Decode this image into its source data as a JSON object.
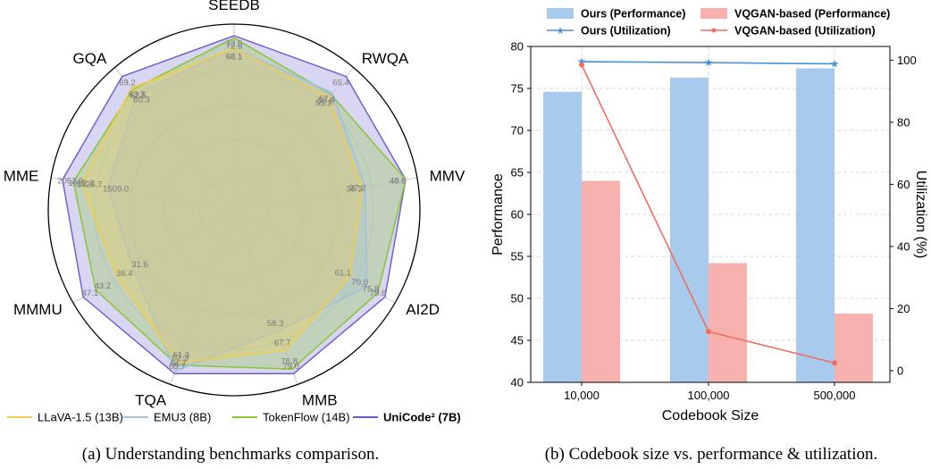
{
  "chart_data": [
    {
      "type": "radar",
      "caption": "(a) Understanding benchmarks comparison.",
      "axes": [
        "SEEDB",
        "RWQA",
        "MMV",
        "AI2D",
        "MMB",
        "TQA",
        "MMMU",
        "MME",
        "GQA"
      ],
      "series": [
        {
          "name": "LLaVA-1.5 (13B)",
          "color": "#f2cd4d",
          "values": [
            68.1,
            55.3,
            36.3,
            61.1,
            67.7,
            61.3,
            36.4,
            1826.7,
            63.3
          ]
        },
        {
          "name": "EMU3 (8B)",
          "color": "#a9bfd6",
          "values": [
            68.1,
            57.4,
            37.2,
            70.0,
            58.3,
            64.7,
            31.6,
            1509.0,
            60.3
          ]
        },
        {
          "name": "TokenFlow (14B)",
          "color": "#8cc63e",
          "values": [
            72.6,
            56.6,
            48.6,
            75.8,
            76.8,
            62.3,
            43.2,
            1922.2,
            62.5
          ]
        },
        {
          "name": "UniCode² (7B)",
          "color": "#6a5acd",
          "fill": "#cbc8ee",
          "values": [
            73.5,
            65.4,
            48.6,
            79.6,
            79.0,
            65.7,
            47.1,
            2052.0,
            69.2
          ]
        }
      ]
    },
    {
      "type": "bar+line",
      "caption": "(b) Codebook size vs. performance & utilization.",
      "categories": [
        "10,000",
        "100,000",
        "500,000"
      ],
      "xlabel": "Codebook Size",
      "ylabel": "Performance",
      "ylabel_right": "Utilization (%)",
      "ylim": [
        40,
        80
      ],
      "yticks": [
        40,
        45,
        50,
        55,
        60,
        65,
        70,
        75,
        80
      ],
      "ylim_right": [
        -3.75,
        104.4
      ],
      "yticks_right": [
        0,
        20,
        40,
        60,
        80,
        100
      ],
      "grid": true,
      "legend_placement": "top",
      "bars": [
        {
          "name": "Ours (Performance)",
          "color": "#a8caed",
          "values": [
            74.6,
            76.3,
            77.4
          ]
        },
        {
          "name": "VQGAN-based (Performance)",
          "color": "#f7b2ad",
          "values": [
            64.0,
            54.2,
            48.2
          ]
        }
      ],
      "lines": [
        {
          "name": "Ours (Utilization)",
          "color": "#4a90d9",
          "marker": "star",
          "values": [
            99.5,
            99.2,
            98.8
          ]
        },
        {
          "name": "VQGAN-based (Utilization)",
          "color": "#ef6f60",
          "marker": "dot",
          "values": [
            98.5,
            12.6,
            2.5
          ]
        }
      ]
    }
  ]
}
